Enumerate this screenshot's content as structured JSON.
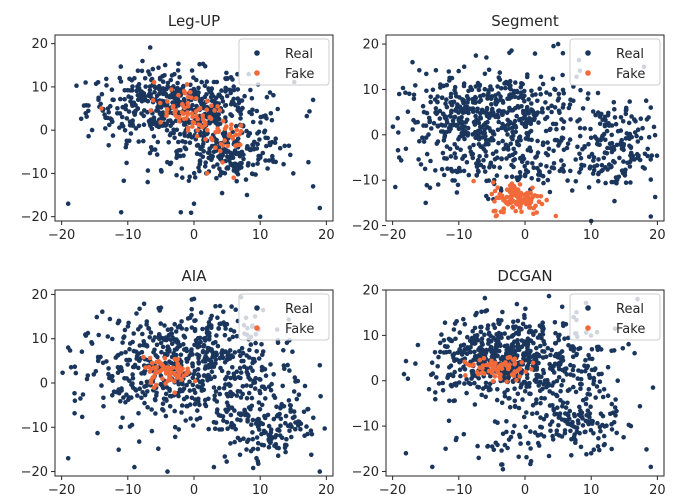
{
  "colors": {
    "real": "#1b365d",
    "fake": "#f26a3a"
  },
  "chart_data": [
    {
      "type": "scatter",
      "title": "Leg-UP",
      "xlim": [
        -21,
        21
      ],
      "ylim": [
        -21,
        22
      ],
      "xticks": [
        -20,
        -10,
        0,
        10,
        20
      ],
      "yticks": [
        -20,
        -10,
        0,
        10,
        20
      ],
      "legend": "top-right",
      "grid": false,
      "series": [
        {
          "name": "Real",
          "clusters": [
            [
              -4,
              6,
              6,
              4,
              400
            ],
            [
              3,
              1,
              6,
              5,
              200
            ],
            [
              5,
              -6,
              4,
              3,
              150
            ]
          ],
          "extra": [
            [
              -19,
              -17
            ],
            [
              -11,
              -19
            ],
            [
              -2,
              -19
            ],
            [
              0,
              -17
            ],
            [
              10,
              -20
            ],
            [
              18,
              -13
            ],
            [
              19,
              -18
            ],
            [
              18,
              7
            ],
            [
              15,
              -10
            ],
            [
              -13,
              5
            ],
            [
              -9,
              12
            ],
            [
              -7,
              -12
            ],
            [
              8,
              -15
            ]
          ]
        },
        {
          "name": "Fake",
          "clusters": [
            [
              -2,
              4,
              2.5,
              1.5,
              50
            ],
            [
              3,
              0,
              2,
              1.5,
              25
            ],
            [
              5,
              -3,
              1.5,
              2,
              15
            ],
            [
              -2,
              9,
              2,
              1.5,
              10
            ]
          ],
          "extra": [
            [
              -14,
              5
            ],
            [
              2,
              -10
            ],
            [
              6,
              -11
            ]
          ]
        }
      ]
    },
    {
      "type": "scatter",
      "title": "Segment",
      "xlim": [
        -21,
        21
      ],
      "ylim": [
        -19,
        22
      ],
      "xticks": [
        -20,
        -10,
        0,
        10,
        20
      ],
      "yticks": [
        -20,
        -10,
        0,
        10,
        20
      ],
      "legend": "top-right",
      "grid": false,
      "series": [
        {
          "name": "Real",
          "clusters": [
            [
              -8,
              3,
              5,
              5,
              360
            ],
            [
              0,
              5,
              5,
              5,
              200
            ],
            [
              13,
              -3,
              4,
              5,
              200
            ],
            [
              -3,
              -7,
              5,
              3,
              100
            ]
          ],
          "extra": [
            [
              -19,
              -5
            ],
            [
              -17,
              16
            ],
            [
              5,
              20
            ],
            [
              19,
              6
            ],
            [
              19,
              -18
            ],
            [
              10,
              -19
            ],
            [
              -15,
              -15
            ],
            [
              18,
              15
            ],
            [
              -19,
              9
            ]
          ]
        },
        {
          "name": "Fake",
          "clusters": [
            [
              -1,
              -14,
              2,
              1.8,
              120
            ]
          ],
          "extra": []
        }
      ]
    },
    {
      "type": "scatter",
      "title": "AIA",
      "xlim": [
        -21,
        21
      ],
      "ylim": [
        -21,
        21
      ],
      "xticks": [
        -20,
        -10,
        0,
        10,
        20
      ],
      "yticks": [
        -20,
        -10,
        0,
        10,
        20
      ],
      "legend": "top-right",
      "grid": false,
      "series": [
        {
          "name": "Real",
          "clusters": [
            [
              -4,
              3,
              7,
              6,
              480
            ],
            [
              11,
              -8,
              4,
              5,
              200
            ],
            [
              2,
              10,
              5,
              5,
              140
            ]
          ],
          "extra": [
            [
              -19,
              -17
            ],
            [
              -9,
              -19
            ],
            [
              -4,
              -20
            ],
            [
              3,
              -19
            ],
            [
              19,
              -20
            ],
            [
              19,
              4
            ],
            [
              -19,
              8
            ],
            [
              -18,
              -4
            ],
            [
              0,
              19
            ],
            [
              -5,
              17
            ]
          ]
        },
        {
          "name": "Fake",
          "clusters": [
            [
              -4,
              2.5,
              1.8,
              1.5,
              70
            ]
          ],
          "extra": []
        }
      ]
    },
    {
      "type": "scatter",
      "title": "DCGAN",
      "xlim": [
        -21,
        21
      ],
      "ylim": [
        -21,
        20
      ],
      "xticks": [
        -20,
        -10,
        0,
        10,
        20
      ],
      "yticks": [
        -20,
        -10,
        0,
        10,
        20
      ],
      "legend": "top-right",
      "grid": false,
      "series": [
        {
          "name": "Real",
          "clusters": [
            [
              -4,
              5,
              5,
              4,
              430
            ],
            [
              3,
              3,
              6,
              6,
              250
            ],
            [
              8,
              -9,
              3,
              3,
              110
            ],
            [
              1,
              -13,
              5,
              3,
              60
            ]
          ],
          "extra": [
            [
              -18,
              -16
            ],
            [
              -14,
              -19
            ],
            [
              -12,
              -15
            ],
            [
              19,
              -19
            ],
            [
              17,
              18
            ],
            [
              16,
              -10
            ],
            [
              14,
              0
            ],
            [
              -7,
              -17
            ],
            [
              10,
              -16
            ]
          ]
        },
        {
          "name": "Fake",
          "clusters": [
            [
              -4,
              2.5,
              2.4,
              1.2,
              70
            ]
          ],
          "extra": []
        }
      ]
    }
  ]
}
